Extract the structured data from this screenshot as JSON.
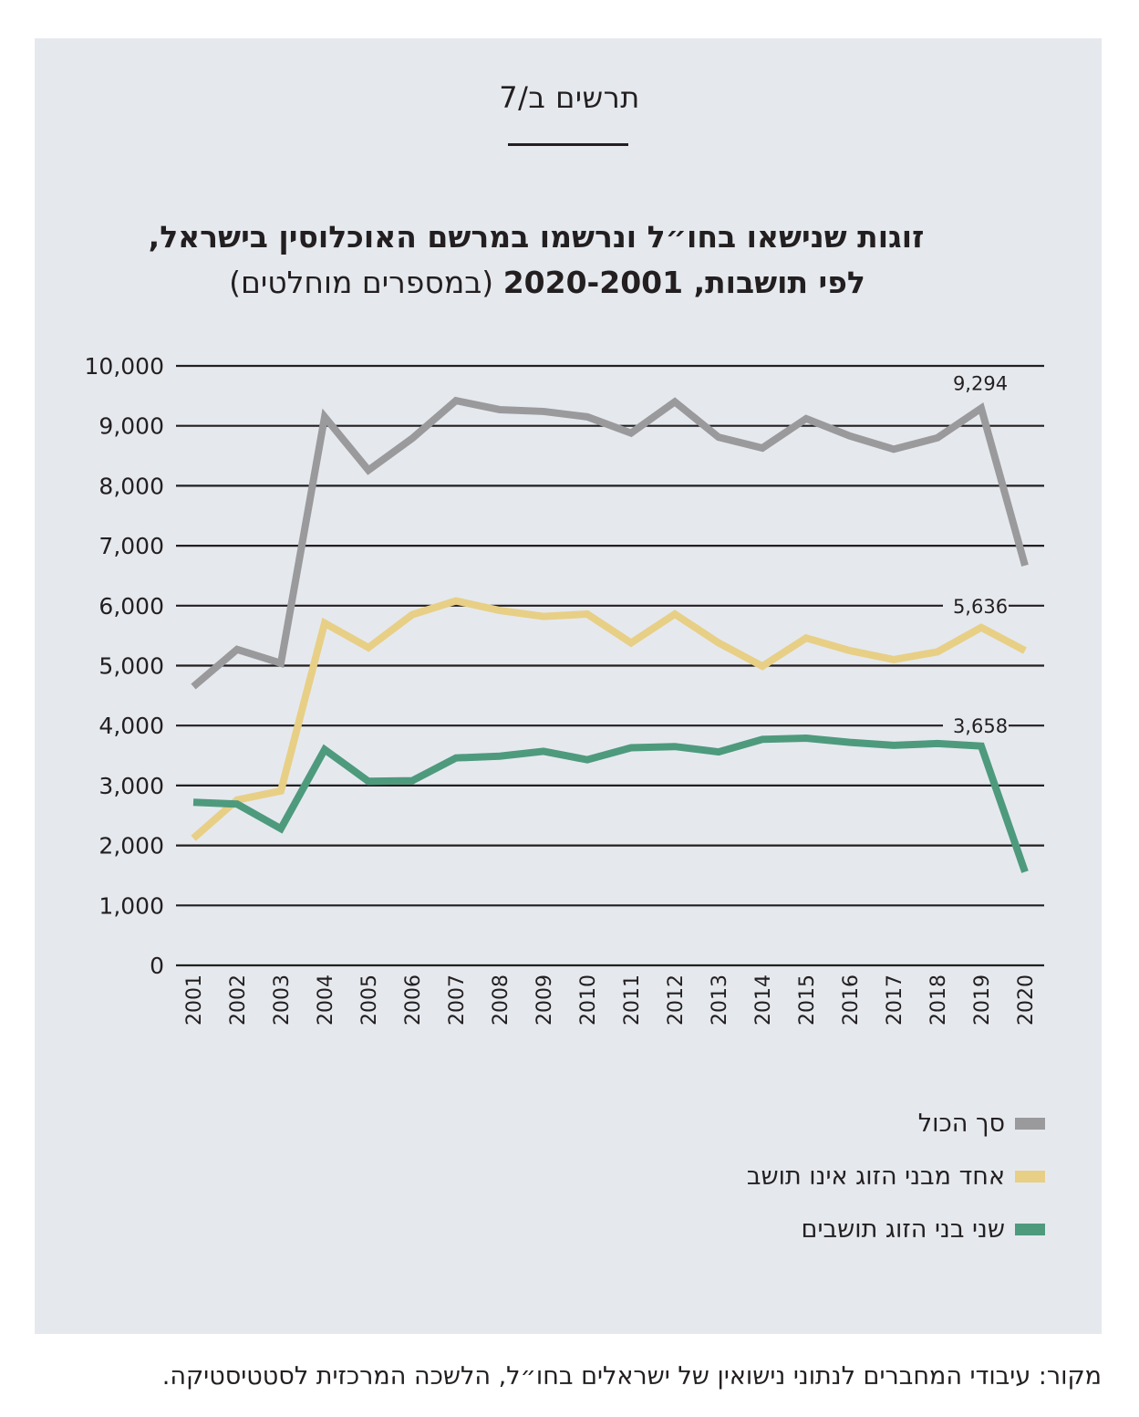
{
  "figure_label": "תרשים ב/7",
  "title_line1": "זוגות שנישאו בחו״ל ונרשמו במרשם האוכלוסין בישראל,",
  "title_line2_bold": "לפי תושבות, 2020-2001",
  "title_line2_light": "(במספרים מוחלטים)",
  "source": "מקור: עיבודי המחברים לנתוני נישואין של ישראלים בחו״ל, הלשכה המרכזית לסטטיסטיקה.",
  "colors": {
    "total": "#9a9a9c",
    "one_nonresident": "#e8cf86",
    "both_residents": "#4e9a7d",
    "panel": "#e5e9ee",
    "gridline": "#231f20"
  },
  "chart_data": {
    "type": "line",
    "x": [
      "2001",
      "2002",
      "2003",
      "2004",
      "2005",
      "2006",
      "2007",
      "2008",
      "2009",
      "2010",
      "2011",
      "2012",
      "2013",
      "2014",
      "2015",
      "2016",
      "2017",
      "2018",
      "2019",
      "2020"
    ],
    "ylim": [
      0,
      10000
    ],
    "yticks": [
      "0",
      "1,000",
      "2,000",
      "3,000",
      "4,000",
      "5,000",
      "6,000",
      "7,000",
      "8,000",
      "9,000",
      "10,000"
    ],
    "ytick_values": [
      0,
      1000,
      2000,
      3000,
      4000,
      5000,
      6000,
      7000,
      8000,
      9000,
      10000
    ],
    "grid": true,
    "legend_position": "bottom-right",
    "series": [
      {
        "key": "total",
        "name": "סך הכול",
        "values": [
          4650,
          5270,
          5040,
          9150,
          8260,
          8790,
          9420,
          9270,
          9240,
          9150,
          8880,
          9400,
          8810,
          8630,
          9120,
          8830,
          8610,
          8800,
          9294,
          6670
        ]
      },
      {
        "key": "one_nonresident",
        "name": "אחד מבני הזוג אינו תושב",
        "values": [
          2120,
          2760,
          2910,
          5710,
          5300,
          5850,
          6080,
          5920,
          5820,
          5860,
          5380,
          5860,
          5380,
          4990,
          5460,
          5250,
          5100,
          5230,
          5636,
          5250
        ]
      },
      {
        "key": "both_residents",
        "name": "שני בני הזוג תושבים",
        "values": [
          2720,
          2690,
          2280,
          3600,
          3070,
          3080,
          3460,
          3490,
          3570,
          3430,
          3630,
          3650,
          3560,
          3770,
          3790,
          3720,
          3670,
          3700,
          3658,
          1560
        ]
      }
    ],
    "annotations": [
      {
        "series": "total",
        "x": "2019",
        "text": "9,294"
      },
      {
        "series": "one_nonresident",
        "x": "2019",
        "text": "5,636"
      },
      {
        "series": "both_residents",
        "x": "2019",
        "text": "3,658"
      }
    ]
  }
}
